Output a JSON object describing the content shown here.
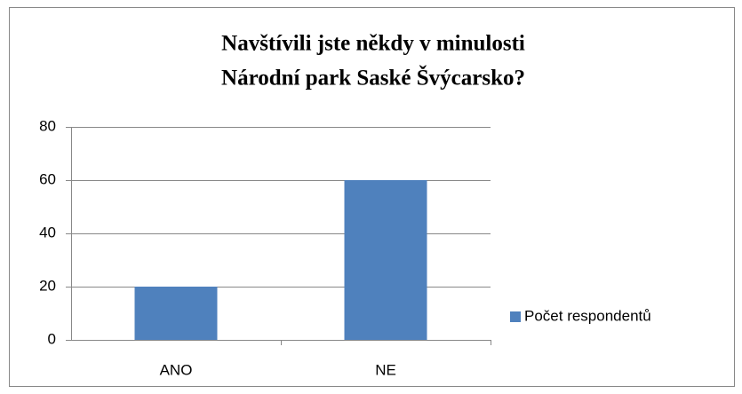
{
  "chart_data": {
    "type": "bar",
    "title": [
      "Navštívili jste někdy v minulosti",
      "Národní park Saské Švýcarsko?"
    ],
    "categories": [
      "ANO",
      "NE"
    ],
    "series": [
      {
        "name": "Počet respondentů",
        "color": "#4f81bd",
        "values": [
          20,
          60
        ]
      }
    ],
    "ylim": [
      0,
      80
    ],
    "yticks": [
      0,
      20,
      40,
      60,
      80
    ],
    "grid": true,
    "legend": "right"
  }
}
